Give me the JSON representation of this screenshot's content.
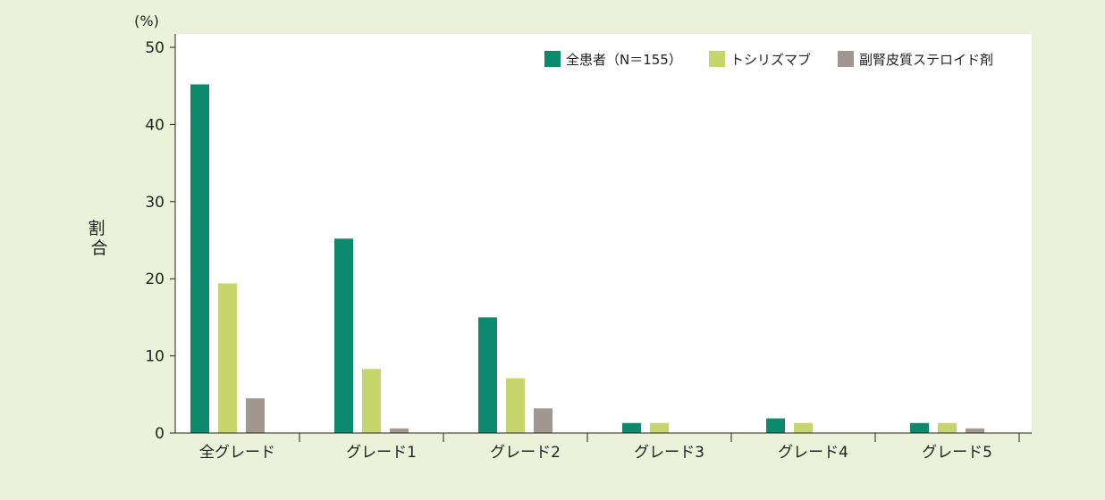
{
  "chart_data": {
    "type": "bar",
    "unit_label": "(%)",
    "ylabel": "割合",
    "xlabel": "",
    "ylim": [
      0,
      50
    ],
    "yticks": [
      0,
      10,
      20,
      30,
      40,
      50
    ],
    "grid": false,
    "legend_position": "top-right",
    "categories": [
      "全グレード",
      "グレード1",
      "グレード2",
      "グレード3",
      "グレード4",
      "グレード5"
    ],
    "series": [
      {
        "name": "全患者（N＝155）",
        "color": "#0d8a6e",
        "values": [
          45.2,
          25.2,
          15.0,
          1.3,
          1.9,
          1.3
        ]
      },
      {
        "name": "トシリズマブ",
        "color": "#c6d56c",
        "values": [
          19.4,
          8.3,
          7.1,
          1.3,
          1.3,
          1.3
        ]
      },
      {
        "name": "副腎皮質ステロイド剤",
        "color": "#a29790",
        "values": [
          4.5,
          0.6,
          3.2,
          0,
          0,
          0.6
        ]
      }
    ]
  }
}
